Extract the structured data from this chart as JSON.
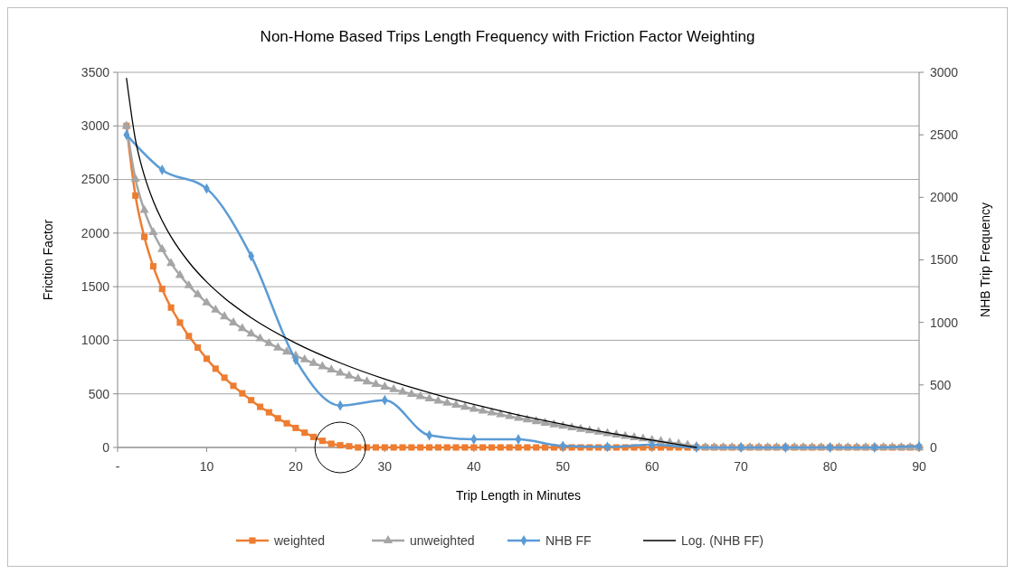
{
  "chart_data": {
    "type": "line",
    "title": "Non-Home Based Trips Length Frequency with Friction Factor Weighting",
    "xlabel": "Trip Length in Minutes",
    "ylabel": "Friction Factor",
    "y2label": "NHB Trip Frequency",
    "x": [
      1,
      2,
      3,
      4,
      5,
      6,
      7,
      8,
      9,
      10,
      11,
      12,
      13,
      14,
      15,
      16,
      17,
      18,
      19,
      20,
      21,
      22,
      23,
      24,
      25,
      26,
      27,
      28,
      29,
      30,
      31,
      32,
      33,
      34,
      35,
      36,
      37,
      38,
      39,
      40,
      41,
      42,
      43,
      44,
      45,
      46,
      47,
      48,
      49,
      50,
      51,
      52,
      53,
      54,
      55,
      56,
      57,
      58,
      59,
      60,
      61,
      62,
      63,
      64,
      65,
      66,
      67,
      68,
      69,
      70,
      71,
      72,
      73,
      74,
      75,
      76,
      77,
      78,
      79,
      80,
      81,
      82,
      83,
      84,
      85,
      86,
      87,
      88,
      89,
      90
    ],
    "xlim": [
      0,
      90
    ],
    "xticks": [
      {
        "value": 0,
        "label": "-"
      },
      10,
      20,
      30,
      40,
      50,
      60,
      70,
      80,
      90
    ],
    "ylim": [
      0,
      3500
    ],
    "yticks": [
      0,
      500,
      1000,
      1500,
      2000,
      2500,
      3000,
      3500
    ],
    "y2lim": [
      0,
      3000
    ],
    "y2ticks": [
      0,
      500,
      1000,
      1500,
      2000,
      2500,
      3000
    ],
    "grid": "y",
    "legend": "bottom",
    "series": [
      {
        "name": "weighted",
        "color": "#ed7d31",
        "marker": "square",
        "values": [
          3000,
          2350,
          1965,
          1690,
          1479,
          1305,
          1165,
          1039,
          932,
          828,
          735,
          651,
          575,
          505,
          441,
          379,
          328,
          272,
          225,
          182,
          138,
          98,
          62,
          34,
          20,
          11,
          0,
          0,
          0,
          0,
          0,
          0,
          0,
          0,
          0,
          0,
          0,
          0,
          0,
          0,
          0,
          0,
          0,
          0,
          0,
          0,
          0,
          0,
          0,
          0,
          0,
          0,
          0,
          0,
          0,
          0,
          0,
          0,
          0,
          0,
          0,
          0,
          0,
          0,
          0,
          0,
          0,
          0,
          0,
          0,
          0,
          0,
          0,
          0,
          0,
          0,
          0,
          0,
          0,
          0,
          0,
          0,
          0,
          0,
          0,
          0,
          0,
          0,
          0,
          0
        ]
      },
      {
        "name": "unweighted",
        "color": "#a5a5a5",
        "marker": "triangle",
        "values": [
          3000,
          2504,
          2213,
          2007,
          1848,
          1717,
          1607,
          1511,
          1427,
          1351,
          1283,
          1221,
          1164,
          1110,
          1061,
          1015,
          971,
          930,
          892,
          855,
          820,
          787,
          755,
          724,
          695,
          667,
          640,
          614,
          589,
          565,
          541,
          519,
          497,
          475,
          454,
          434,
          415,
          395,
          377,
          359,
          341,
          324,
          307,
          290,
          274,
          259,
          243,
          228,
          213,
          199,
          185,
          171,
          157,
          144,
          131,
          118,
          105,
          93,
          81,
          69,
          57,
          45,
          34,
          22,
          11,
          0,
          0,
          0,
          0,
          0,
          0,
          0,
          0,
          0,
          0,
          0,
          0,
          0,
          0,
          0,
          0,
          0,
          0,
          0,
          0,
          0,
          0,
          0,
          0,
          0
        ]
      },
      {
        "name": "NHB FF",
        "color": "#5b9bd5",
        "marker": "diamond",
        "axis": "y2",
        "x": [
          1,
          5,
          10,
          15,
          20,
          25,
          30,
          35,
          40,
          45,
          50,
          55,
          60,
          65,
          70,
          75,
          80,
          85,
          90
        ],
        "values": [
          2500,
          2220,
          2070,
          1530,
          700,
          335,
          378,
          97,
          65,
          65,
          12,
          5,
          22,
          0,
          0,
          0,
          0,
          0,
          10
        ]
      },
      {
        "name": "Log. (NHB FF)",
        "color": "#000000",
        "marker": "none",
        "axis": "y2",
        "x": [
          1,
          2,
          3,
          4,
          5,
          6,
          8,
          10,
          12,
          15,
          20,
          25,
          30,
          35,
          40,
          45,
          50,
          55,
          60,
          65
        ],
        "values": [
          2952,
          2462,
          2175,
          1972,
          1814,
          1685,
          1482,
          1324,
          1195,
          1037,
          834,
          676,
          547,
          439,
          344,
          260,
          186,
          119,
          58,
          0
        ]
      }
    ]
  }
}
